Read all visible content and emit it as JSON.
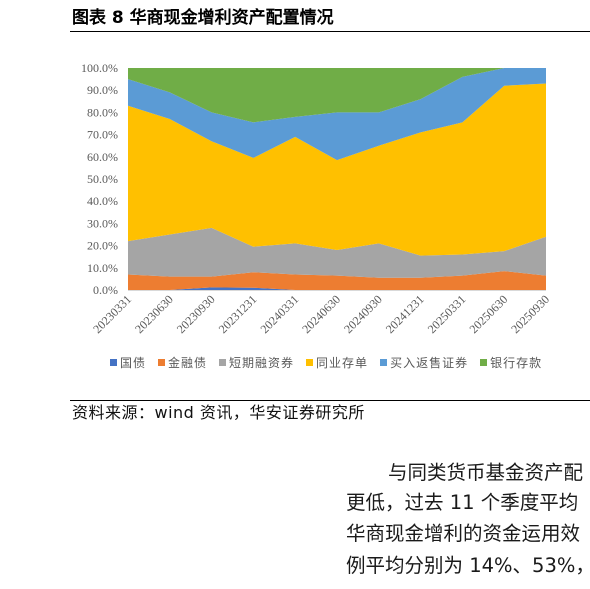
{
  "chart_data": {
    "type": "area",
    "stacked": true,
    "title": "图表 8 华商现金增利资产配置情况",
    "xlabel": "",
    "ylabel": "",
    "ylim": [
      0,
      100
    ],
    "yticks": [
      0,
      10,
      20,
      30,
      40,
      50,
      60,
      70,
      80,
      90,
      100
    ],
    "ytick_labels": [
      "0.0%",
      "10.0%",
      "20.0%",
      "30.0%",
      "40.0%",
      "50.0%",
      "60.0%",
      "70.0%",
      "80.0%",
      "90.0%",
      "100.0%"
    ],
    "categories": [
      "20230331",
      "20230630",
      "20230930",
      "20231231",
      "20240331",
      "20240630",
      "20240930",
      "20241231",
      "20250331",
      "20250630",
      "20250930"
    ],
    "grid": false,
    "legend": "bottom",
    "series": [
      {
        "name": "国债",
        "color": "#4472C4",
        "values": [
          0,
          0,
          1.2,
          1.0,
          0,
          0,
          0,
          0,
          0,
          0,
          0
        ]
      },
      {
        "name": "金融债",
        "color": "#ED7D31",
        "values": [
          7,
          6,
          4.8,
          7,
          7,
          6.5,
          5.5,
          5.5,
          6.5,
          8.5,
          6.5
        ]
      },
      {
        "name": "短期融资券",
        "color": "#A5A5A5",
        "values": [
          15,
          19,
          22,
          11.5,
          14,
          11.5,
          15.5,
          10,
          9.5,
          9,
          17.5
        ]
      },
      {
        "name": "同业存单",
        "color": "#FFC000",
        "values": [
          61,
          52,
          39,
          40,
          48,
          40.5,
          44,
          55.5,
          59.5,
          74.5,
          69
        ]
      },
      {
        "name": "买入返售证券",
        "color": "#5B9BD5",
        "values": [
          12,
          12,
          13,
          16,
          9,
          21.5,
          15,
          15,
          20.5,
          8,
          7
        ]
      },
      {
        "name": "银行存款",
        "color": "#70AD47",
        "values": [
          5,
          11,
          20,
          24.5,
          22,
          20,
          20,
          14,
          4,
          0,
          0
        ]
      }
    ]
  },
  "document": {
    "source_note": "资料来源：wind 资讯，华安证券研究所",
    "body_lines": [
      "与同类货币基金资产配",
      "更低，过去 11 个季度平均",
      "华商现金增利的资金运用效",
      "例平均分别为 14%、53%，"
    ]
  }
}
